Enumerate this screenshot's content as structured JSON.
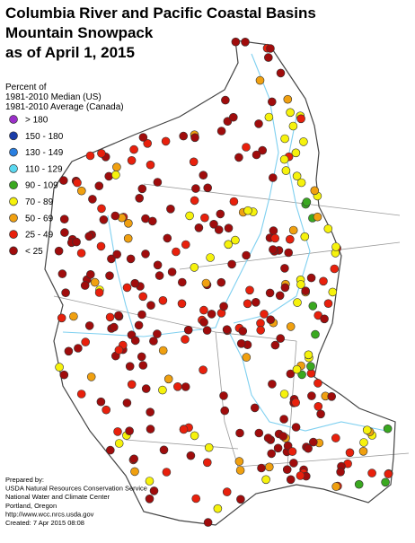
{
  "title": [
    "Columbia River and Pacific Coastal Basins",
    "Mountain Snowpack",
    "as of April 1, 2015"
  ],
  "legend": {
    "heading": [
      "Percent of",
      "1981-2010 Median (US)",
      "1981-2010 Average (Canada)"
    ],
    "items": [
      {
        "label": "> 180",
        "color": "#9b2fc9"
      },
      {
        "label": "150 - 180",
        "color": "#1a3ca8"
      },
      {
        "label": "130 - 149",
        "color": "#2a7fe0"
      },
      {
        "label": "110 - 129",
        "color": "#5ad8f0"
      },
      {
        "label": "90 - 109",
        "color": "#3aa820"
      },
      {
        "label": "70 - 89",
        "color": "#f6f20c"
      },
      {
        "label": "50 - 69",
        "color": "#f0a010"
      },
      {
        "label": "25 - 49",
        "color": "#e8200c"
      },
      {
        "label": "< 25",
        "color": "#a00c0c"
      }
    ]
  },
  "credits": [
    "Prepared by:",
    "USDA Natural Resources Conservation Service",
    "National Water and Climate Center",
    "Portland, Oregon",
    "http://www.wcc.nrcs.usda.gov",
    "Created:  7 Apr 2015  08:08"
  ]
}
